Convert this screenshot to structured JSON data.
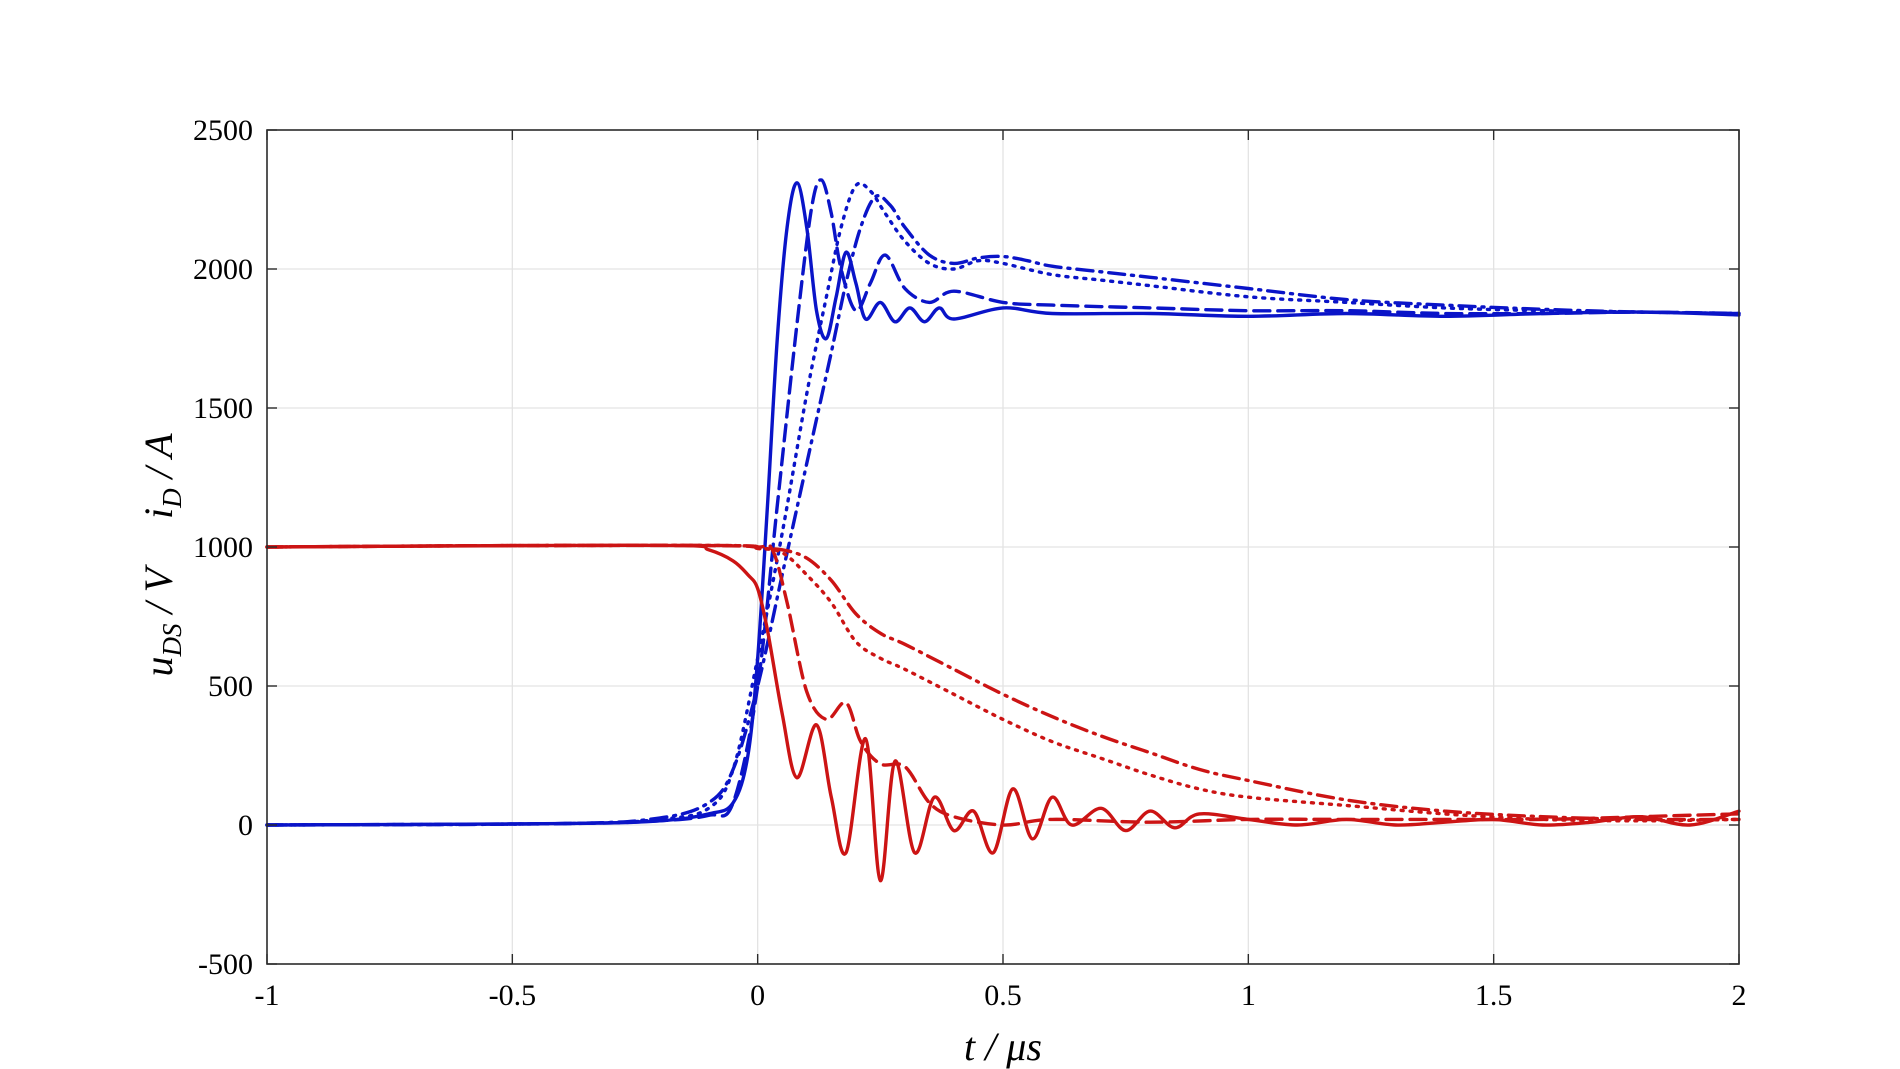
{
  "chart_data": {
    "type": "line",
    "xlim": [
      -1,
      2
    ],
    "ylim": [
      -500,
      2500
    ],
    "x_ticks": [
      -1,
      -0.5,
      0,
      0.5,
      1,
      1.5,
      2
    ],
    "x_tick_labels": [
      "-1",
      "-0.5",
      "0",
      "0.5",
      "1",
      "1.5",
      "2"
    ],
    "y_ticks": [
      -500,
      0,
      500,
      1000,
      1500,
      2000,
      2500
    ],
    "y_tick_labels": [
      "-500",
      "0",
      "500",
      "1000",
      "1500",
      "2000",
      "2500"
    ],
    "xlabel": {
      "var": "t",
      "sep": " / ",
      "unit": "μs"
    },
    "ylabel": {
      "u": "u",
      "u_sub": "DS",
      "u_sep": " / V",
      "i": "i",
      "i_sub": "D",
      "i_sep": " / A"
    },
    "grid": true,
    "legend": "none",
    "colors": {
      "current": "#0a14c8",
      "voltage": "#cc1414"
    },
    "series": [
      {
        "quantity": "current",
        "style": "solid",
        "x": [
          -1,
          -0.4,
          -0.2,
          -0.1,
          -0.05,
          -0.02,
          0,
          0.02,
          0.04,
          0.06,
          0.08,
          0.1,
          0.12,
          0.14,
          0.16,
          0.18,
          0.2,
          0.22,
          0.25,
          0.28,
          0.31,
          0.34,
          0.37,
          0.4,
          0.5,
          0.6,
          0.8,
          1,
          1.2,
          1.4,
          1.6,
          1.8,
          2
        ],
        "y": [
          0,
          5,
          15,
          40,
          80,
          250,
          600,
          1150,
          1750,
          2150,
          2310,
          2150,
          1850,
          1750,
          1900,
          2060,
          1950,
          1820,
          1880,
          1810,
          1860,
          1810,
          1860,
          1820,
          1860,
          1840,
          1840,
          1830,
          1840,
          1830,
          1840,
          1845,
          1835
        ]
      },
      {
        "quantity": "current",
        "style": "dashed",
        "x": [
          -1,
          -0.4,
          -0.2,
          -0.1,
          -0.05,
          0,
          0.04,
          0.08,
          0.11,
          0.13,
          0.15,
          0.17,
          0.2,
          0.23,
          0.26,
          0.3,
          0.35,
          0.4,
          0.5,
          0.6,
          0.8,
          1,
          1.2,
          1.4,
          1.6,
          1.8,
          2
        ],
        "y": [
          0,
          5,
          15,
          35,
          80,
          500,
          1150,
          1800,
          2220,
          2320,
          2200,
          2000,
          1850,
          1950,
          2050,
          1930,
          1880,
          1920,
          1880,
          1870,
          1860,
          1850,
          1850,
          1840,
          1840,
          1845,
          1840
        ]
      },
      {
        "quantity": "current",
        "style": "dotted",
        "x": [
          -1,
          -0.4,
          -0.2,
          -0.1,
          -0.05,
          0,
          0.05,
          0.1,
          0.14,
          0.17,
          0.2,
          0.23,
          0.26,
          0.3,
          0.35,
          0.4,
          0.45,
          0.5,
          0.6,
          0.7,
          0.8,
          1,
          1.2,
          1.4,
          1.6,
          1.8,
          2
        ],
        "y": [
          0,
          5,
          20,
          60,
          200,
          600,
          1050,
          1550,
          1900,
          2150,
          2300,
          2280,
          2200,
          2100,
          2020,
          2000,
          2030,
          2020,
          1980,
          1960,
          1940,
          1900,
          1880,
          1860,
          1850,
          1845,
          1840
        ]
      },
      {
        "quantity": "current",
        "style": "dashdot",
        "x": [
          -1,
          -0.4,
          -0.2,
          -0.1,
          -0.05,
          0,
          0.05,
          0.1,
          0.15,
          0.18,
          0.21,
          0.24,
          0.27,
          0.3,
          0.35,
          0.4,
          0.45,
          0.5,
          0.55,
          0.6,
          0.7,
          0.8,
          1,
          1.2,
          1.4,
          1.6,
          1.8,
          2
        ],
        "y": [
          0,
          5,
          25,
          80,
          200,
          500,
          900,
          1300,
          1700,
          1950,
          2150,
          2260,
          2230,
          2150,
          2050,
          2020,
          2040,
          2045,
          2030,
          2010,
          1990,
          1970,
          1930,
          1890,
          1870,
          1855,
          1845,
          1840
        ]
      },
      {
        "quantity": "voltage",
        "style": "solid",
        "x": [
          -1,
          -0.5,
          -0.15,
          -0.1,
          -0.05,
          -0.02,
          0,
          0.02,
          0.05,
          0.08,
          0.12,
          0.15,
          0.18,
          0.22,
          0.25,
          0.28,
          0.32,
          0.36,
          0.4,
          0.44,
          0.48,
          0.52,
          0.56,
          0.6,
          0.64,
          0.7,
          0.75,
          0.8,
          0.85,
          0.9,
          1,
          1.1,
          1.2,
          1.3,
          1.4,
          1.5,
          1.6,
          1.7,
          1.8,
          1.9,
          2
        ],
        "y": [
          1000,
          1005,
          1005,
          990,
          950,
          900,
          850,
          700,
          400,
          170,
          360,
          100,
          -100,
          310,
          -200,
          230,
          -100,
          100,
          -20,
          50,
          -100,
          130,
          -50,
          100,
          0,
          60,
          -20,
          50,
          -10,
          40,
          20,
          0,
          20,
          0,
          10,
          20,
          0,
          10,
          30,
          0,
          50
        ]
      },
      {
        "quantity": "voltage",
        "style": "dashed",
        "x": [
          -1,
          -0.5,
          -0.1,
          0,
          0.03,
          0.06,
          0.1,
          0.14,
          0.18,
          0.21,
          0.25,
          0.3,
          0.35,
          0.4,
          0.5,
          0.6,
          0.8,
          1,
          1.2,
          1.4,
          1.6,
          1.8,
          2
        ],
        "y": [
          1000,
          1005,
          1005,
          1000,
          990,
          800,
          480,
          380,
          440,
          300,
          220,
          210,
          80,
          30,
          0,
          20,
          10,
          20,
          20,
          20,
          20,
          30,
          40
        ]
      },
      {
        "quantity": "voltage",
        "style": "dotted",
        "x": [
          -1,
          -0.5,
          -0.05,
          0,
          0.05,
          0.1,
          0.15,
          0.2,
          0.25,
          0.3,
          0.4,
          0.5,
          0.6,
          0.7,
          0.8,
          0.9,
          1,
          1.2,
          1.4,
          1.6,
          1.8,
          2
        ],
        "y": [
          1000,
          1005,
          1005,
          995,
          980,
          900,
          800,
          660,
          600,
          560,
          470,
          380,
          300,
          240,
          180,
          130,
          100,
          70,
          40,
          20,
          15,
          20
        ]
      },
      {
        "quantity": "voltage",
        "style": "dashdot",
        "x": [
          -1,
          -0.5,
          -0.05,
          0,
          0.05,
          0.1,
          0.15,
          0.2,
          0.25,
          0.3,
          0.4,
          0.5,
          0.6,
          0.7,
          0.8,
          0.9,
          1,
          1.2,
          1.4,
          1.6,
          1.8,
          2
        ],
        "y": [
          1000,
          1005,
          1005,
          995,
          990,
          960,
          880,
          760,
          690,
          650,
          560,
          470,
          390,
          320,
          260,
          200,
          160,
          90,
          50,
          30,
          20,
          20
        ]
      }
    ]
  }
}
